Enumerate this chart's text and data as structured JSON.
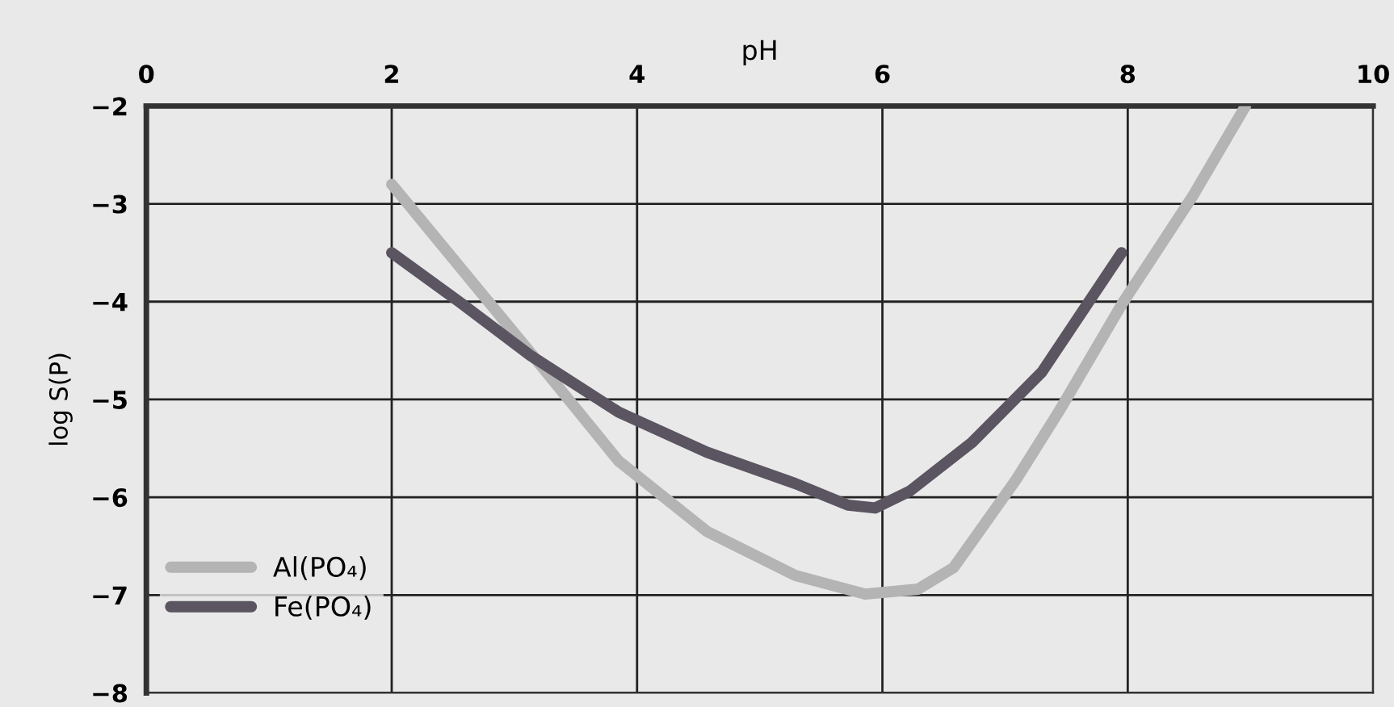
{
  "chart_data": {
    "type": "line",
    "xlabel": "pH",
    "ylabel": "log S(P)",
    "xlim": [
      0,
      10
    ],
    "xticks": [
      0,
      2,
      4,
      6,
      8,
      10
    ],
    "ylim": [
      -8,
      -2
    ],
    "yticks": [
      {
        "value": -8,
        "label": "−8"
      },
      {
        "value": -7,
        "label": "−7"
      },
      {
        "value": -6,
        "label": "−6"
      },
      {
        "value": -5,
        "label": "−5"
      },
      {
        "value": -4,
        "label": "−4"
      },
      {
        "value": -3,
        "label": "−3"
      },
      {
        "value": -2,
        "label": "−2"
      }
    ],
    "grid": true,
    "legend": "bottom left",
    "marker": "none",
    "line_style": "solid",
    "series": [
      {
        "name": "Al(PO₄)",
        "color": "#b4b4b4",
        "x": [
          2,
          3.13,
          3.85,
          4.57,
          5.29,
          5.86,
          6.29,
          6.58,
          7.09,
          7.45,
          7.95,
          8.53,
          8.96
        ],
        "values": [
          -2.8,
          -4.52,
          -5.63,
          -6.35,
          -6.8,
          -6.99,
          -6.94,
          -6.72,
          -5.82,
          -5.1,
          -4.03,
          -2.92,
          -2.0
        ]
      },
      {
        "name": "Fe(PO₄)",
        "color": "#5a5560",
        "x": [
          2,
          2.55,
          3.13,
          3.85,
          4.57,
          5.29,
          5.72,
          5.94,
          6.22,
          6.73,
          7.3,
          7.95
        ],
        "values": [
          -3.5,
          -4.0,
          -4.55,
          -5.13,
          -5.54,
          -5.86,
          -6.08,
          -6.11,
          -5.94,
          -5.44,
          -4.72,
          -3.5
        ]
      }
    ]
  }
}
